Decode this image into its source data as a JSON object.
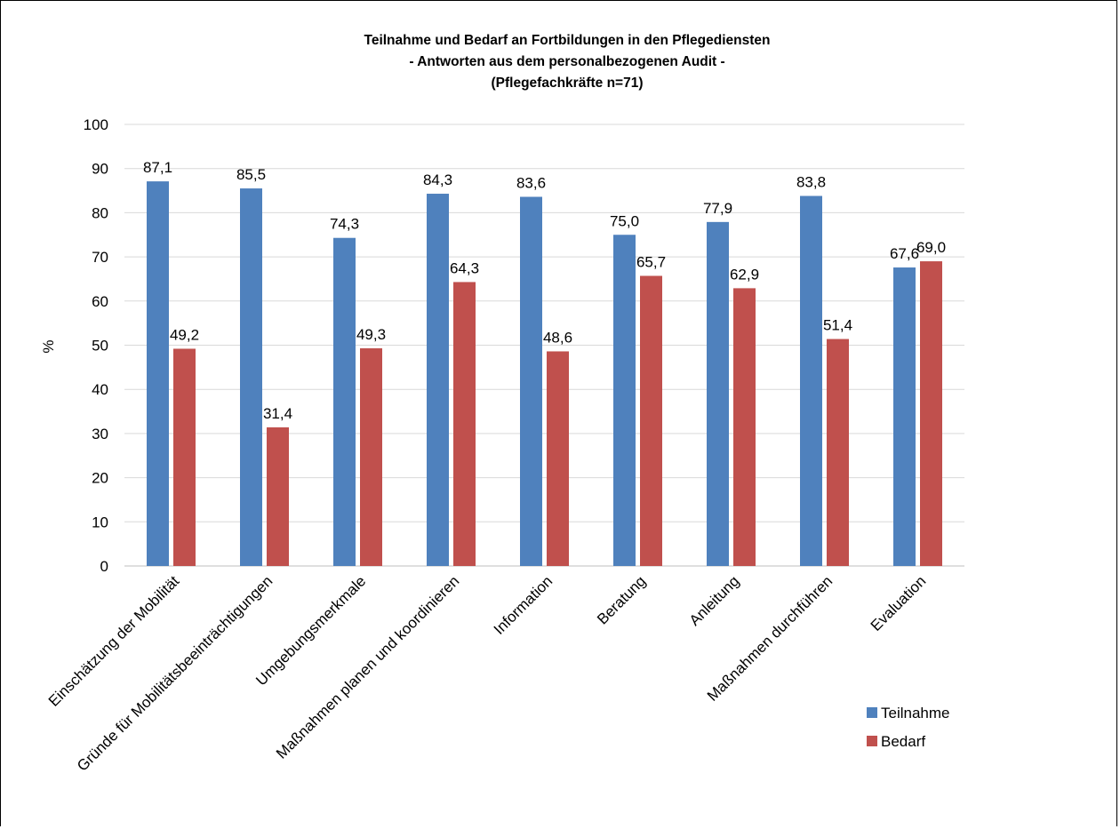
{
  "chart_data": {
    "type": "bar",
    "title_lines": [
      "Teilnahme und Bedarf an Fortbildungen in den Pflegediensten",
      "- Antworten aus dem personalbezogenen Audit -",
      "(Pflegefachkräfte n=71)"
    ],
    "ylabel": "%",
    "xlabel": "",
    "ylim": [
      0,
      100
    ],
    "yticks": [
      "0",
      "10",
      "20",
      "30",
      "40",
      "50",
      "60",
      "70",
      "80",
      "90",
      "100"
    ],
    "grid": true,
    "legend_position": "right",
    "categories": [
      "Einschätzung der Mobilität",
      "Gründe für Mobilitätsbeeinträchtigungen",
      "Umgebungsmerkmale",
      "Maßnahmen planen und koordinieren",
      "Information",
      "Beratung",
      "Anleitung",
      "Maßnahmen durchführen",
      "Evaluation"
    ],
    "series": [
      {
        "name": "Teilnahme",
        "color": "#4F81BD",
        "values": [
          87.1,
          85.5,
          74.3,
          84.3,
          83.6,
          75.0,
          77.9,
          83.8,
          67.6
        ],
        "labels": [
          "87,1",
          "85,5",
          "74,3",
          "84,3",
          "83,6",
          "75,0",
          "77,9",
          "83,8",
          "67,6"
        ]
      },
      {
        "name": "Bedarf",
        "color": "#C0504D",
        "values": [
          49.2,
          31.4,
          49.3,
          64.3,
          48.6,
          65.7,
          62.9,
          51.4,
          69.0
        ],
        "labels": [
          "49,2",
          "31,4",
          "49,3",
          "64,3",
          "48,6",
          "65,7",
          "62,9",
          "51,4",
          "69,0"
        ]
      }
    ]
  }
}
